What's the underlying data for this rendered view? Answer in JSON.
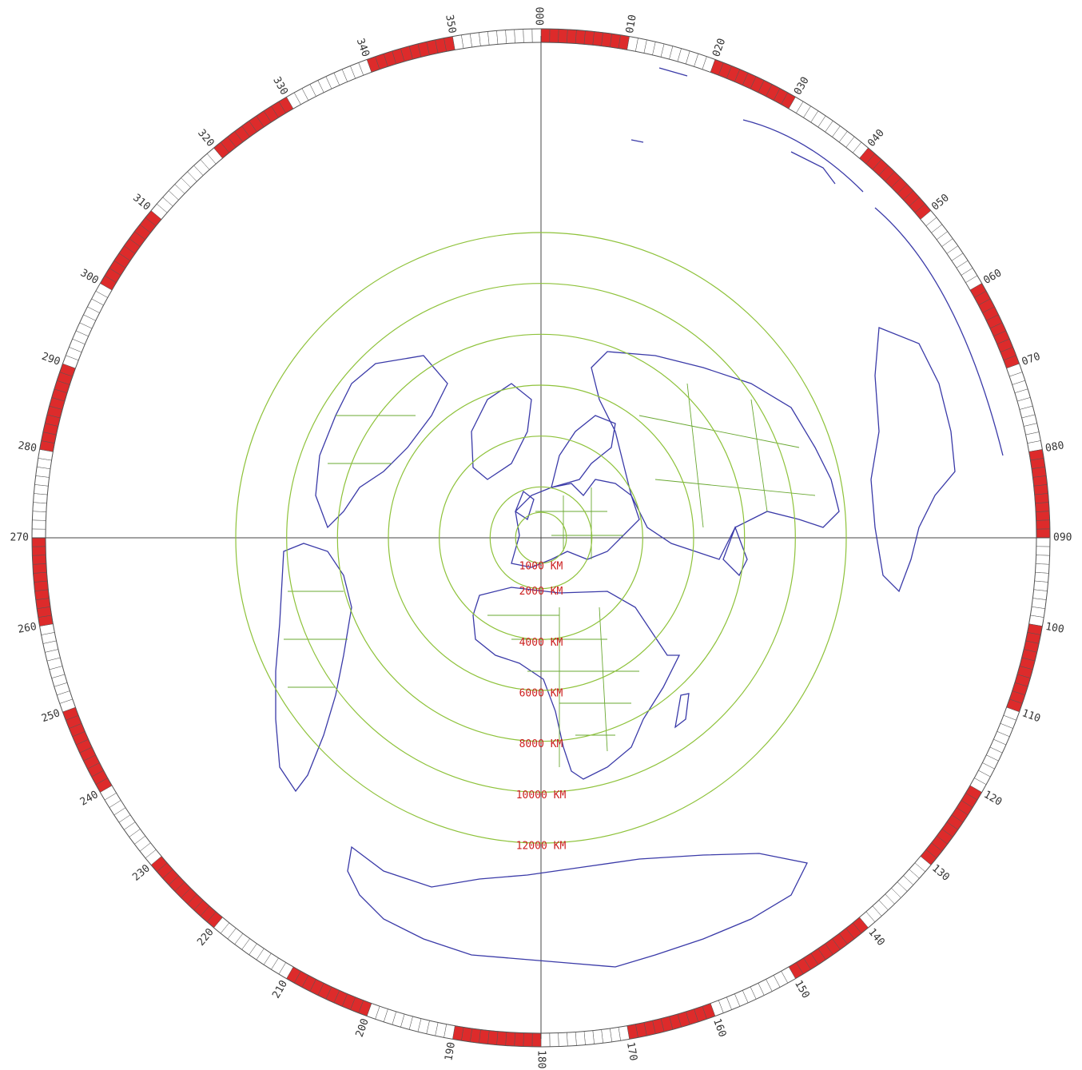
{
  "colors": {
    "background": "#ffffff",
    "coastline": "#3a3aa8",
    "borders": "#6aa832",
    "range_rings": "#8ec23a",
    "axes": "#444444",
    "bearing_fill_red": "#dd2b2b",
    "bearing_fill_white": "#ffffff",
    "bearing_outline": "#555555",
    "range_text": "#cc1f1f"
  },
  "bearing_ring": {
    "labels": [
      "000",
      "010",
      "020",
      "030",
      "040",
      "050",
      "060",
      "070",
      "080",
      "090",
      "100",
      "110",
      "120",
      "130",
      "140",
      "150",
      "160",
      "170",
      "180",
      "190",
      "200",
      "210",
      "220",
      "230",
      "240",
      "250",
      "260",
      "270",
      "280",
      "290",
      "300",
      "310",
      "320",
      "330",
      "340",
      "350"
    ]
  },
  "range_rings": {
    "labels": [
      "1000 KM",
      "2000 KM",
      "4000 KM",
      "6000 KM",
      "8000 KM",
      "10000 KM",
      "12000 KM"
    ],
    "distances_km": [
      1000,
      2000,
      4000,
      6000,
      8000,
      10000,
      12000
    ]
  },
  "map": {
    "projection": "azimuthal-equidistant",
    "center": "Europe"
  }
}
